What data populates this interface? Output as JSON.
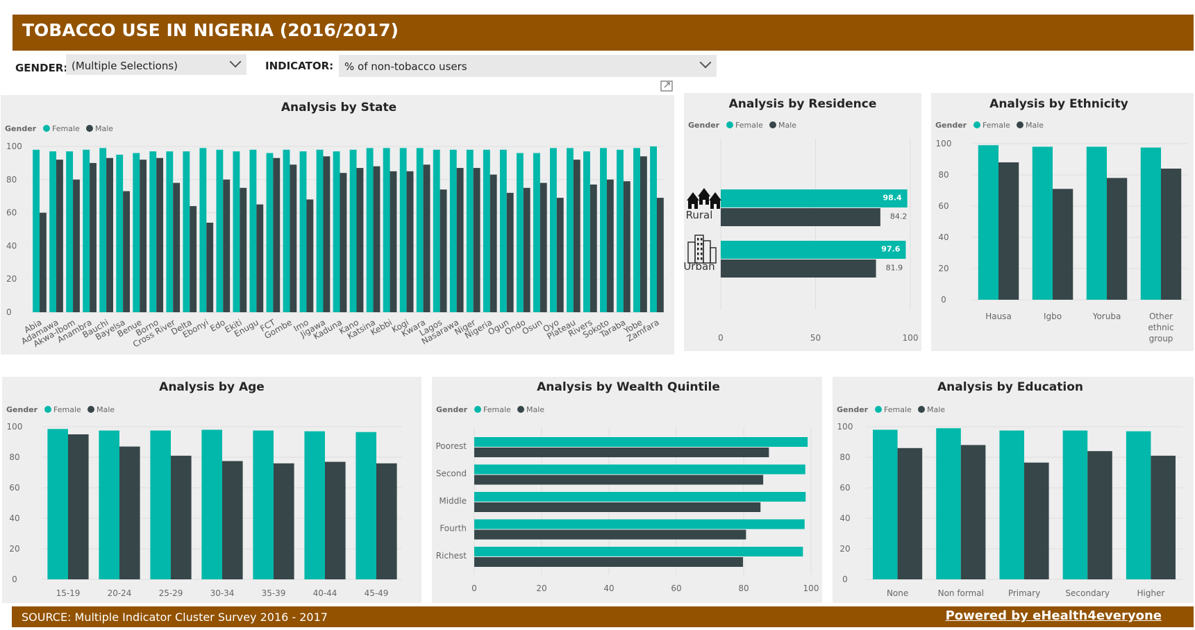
{
  "header": {
    "title": "TOBACCO USE IN NIGERIA (2016/2017)"
  },
  "filters": {
    "gender_label": "GENDER:",
    "gender_value": "(Multiple Selections)",
    "indicator_label": "INDICATOR:",
    "indicator_value": "% of non-tobacco users"
  },
  "legend": {
    "title": "Gender",
    "female": "Female",
    "male": "Male"
  },
  "colors": {
    "female": "#01b8aa",
    "male": "#374649",
    "brand": "#925200",
    "panel": "#eeeeee"
  },
  "icons": {
    "focus": "focus-mode-icon",
    "rural": "village-icon",
    "urban": "city-icon"
  },
  "chart_data": [
    {
      "id": "state",
      "type": "bar",
      "title": "Analysis by State",
      "ylim": [
        0,
        100
      ],
      "yticks": [
        0,
        20,
        40,
        60,
        80,
        100
      ],
      "categories": [
        "Abia",
        "Adamawa",
        "Akwa-Ibom",
        "Anambra",
        "Bauchi",
        "Bayelsa",
        "Benue",
        "Borno",
        "Cross River",
        "Delta",
        "Ebonyi",
        "Edo",
        "Ekiti",
        "Enugu",
        "FCT",
        "Gombe",
        "Imo",
        "Jigawa",
        "Kaduna",
        "Kano",
        "Katsina",
        "Kebbi",
        "Kogi",
        "Kwara",
        "Lagos",
        "Nasarawa",
        "Niger",
        "Nigeria",
        "Ogun",
        "Ondo",
        "Osun",
        "Oyo",
        "Plateau",
        "Rivers",
        "Sokoto",
        "Taraba",
        "Yobe",
        "Zamfara"
      ],
      "series": [
        {
          "name": "Female",
          "values": [
            98,
            97,
            97,
            98,
            99,
            95,
            96,
            97,
            97,
            97,
            99,
            98,
            97,
            98,
            96,
            98,
            97,
            98,
            97,
            98,
            99,
            99,
            99,
            99,
            98,
            98,
            98,
            98,
            98,
            96,
            96,
            99,
            99,
            97,
            99,
            98,
            99,
            100
          ]
        },
        {
          "name": "Male",
          "values": [
            60,
            92,
            80,
            90,
            93,
            73,
            92,
            93,
            78,
            64,
            54,
            80,
            75,
            65,
            93,
            89,
            68,
            94,
            84,
            87,
            88,
            85,
            85,
            89,
            74,
            87,
            87,
            83,
            72,
            75,
            78,
            69,
            92,
            77,
            80,
            79,
            94,
            69
          ]
        }
      ]
    },
    {
      "id": "residence",
      "type": "bar",
      "orientation": "horizontal",
      "title": "Analysis by Residence",
      "xlim": [
        0,
        100
      ],
      "xticks": [
        0,
        50,
        100
      ],
      "categories": [
        "Rural",
        "Urban"
      ],
      "series": [
        {
          "name": "Female",
          "values": [
            98.4,
            97.6
          ],
          "labels": [
            "98.4",
            "97.6"
          ]
        },
        {
          "name": "Male",
          "values": [
            84.2,
            81.9
          ],
          "labels": [
            "84.2",
            "81.9"
          ]
        }
      ]
    },
    {
      "id": "ethnicity",
      "type": "bar",
      "title": "Analysis by Ethnicity",
      "ylim": [
        0,
        100
      ],
      "yticks": [
        0,
        20,
        40,
        60,
        80,
        100
      ],
      "categories": [
        "Hausa",
        "Igbo",
        "Yoruba",
        "Other ethnic group"
      ],
      "category_lines": [
        [
          "Hausa"
        ],
        [
          "Igbo"
        ],
        [
          "Yoruba"
        ],
        [
          "Other",
          "ethnic",
          "group"
        ]
      ],
      "series": [
        {
          "name": "Female",
          "values": [
            99,
            98,
            98,
            97.5
          ]
        },
        {
          "name": "Male",
          "values": [
            88,
            71,
            78,
            84
          ]
        }
      ]
    },
    {
      "id": "age",
      "type": "bar",
      "title": "Analysis by Age",
      "ylim": [
        0,
        100
      ],
      "yticks": [
        0,
        20,
        40,
        60,
        80,
        100
      ],
      "categories": [
        "15-19",
        "20-24",
        "25-29",
        "30-34",
        "35-39",
        "40-44",
        "45-49"
      ],
      "series": [
        {
          "name": "Female",
          "values": [
            98.5,
            97.5,
            97.5,
            98,
            97.5,
            97,
            96.5
          ]
        },
        {
          "name": "Male",
          "values": [
            95,
            87,
            81,
            77.5,
            76,
            77,
            76
          ]
        }
      ]
    },
    {
      "id": "wealth",
      "type": "bar",
      "orientation": "horizontal",
      "title": "Analysis by Wealth Quintile",
      "xlim": [
        0,
        100
      ],
      "xticks": [
        0,
        20,
        40,
        60,
        80,
        100
      ],
      "categories": [
        "Poorest",
        "Second",
        "Middle",
        "Fourth",
        "Richest"
      ],
      "series": [
        {
          "name": "Female",
          "values": [
            99,
            98.3,
            98.4,
            98.1,
            97.6
          ]
        },
        {
          "name": "Male",
          "values": [
            87.5,
            85.8,
            85,
            80.7,
            79.8
          ]
        }
      ]
    },
    {
      "id": "education",
      "type": "bar",
      "title": "Analysis by Education",
      "ylim": [
        0,
        100
      ],
      "yticks": [
        0,
        20,
        40,
        60,
        80,
        100
      ],
      "categories": [
        "None",
        "Non formal",
        "Primary",
        "Secondary",
        "Higher"
      ],
      "series": [
        {
          "name": "Female",
          "values": [
            98,
            99,
            97.5,
            97.5,
            97
          ]
        },
        {
          "name": "Male",
          "values": [
            86,
            88,
            76.5,
            84,
            81
          ]
        }
      ]
    }
  ],
  "footer": {
    "source": "SOURCE: Multiple Indicator Cluster Survey 2016 - 2017",
    "powered": "Powered by eHealth4everyone"
  }
}
